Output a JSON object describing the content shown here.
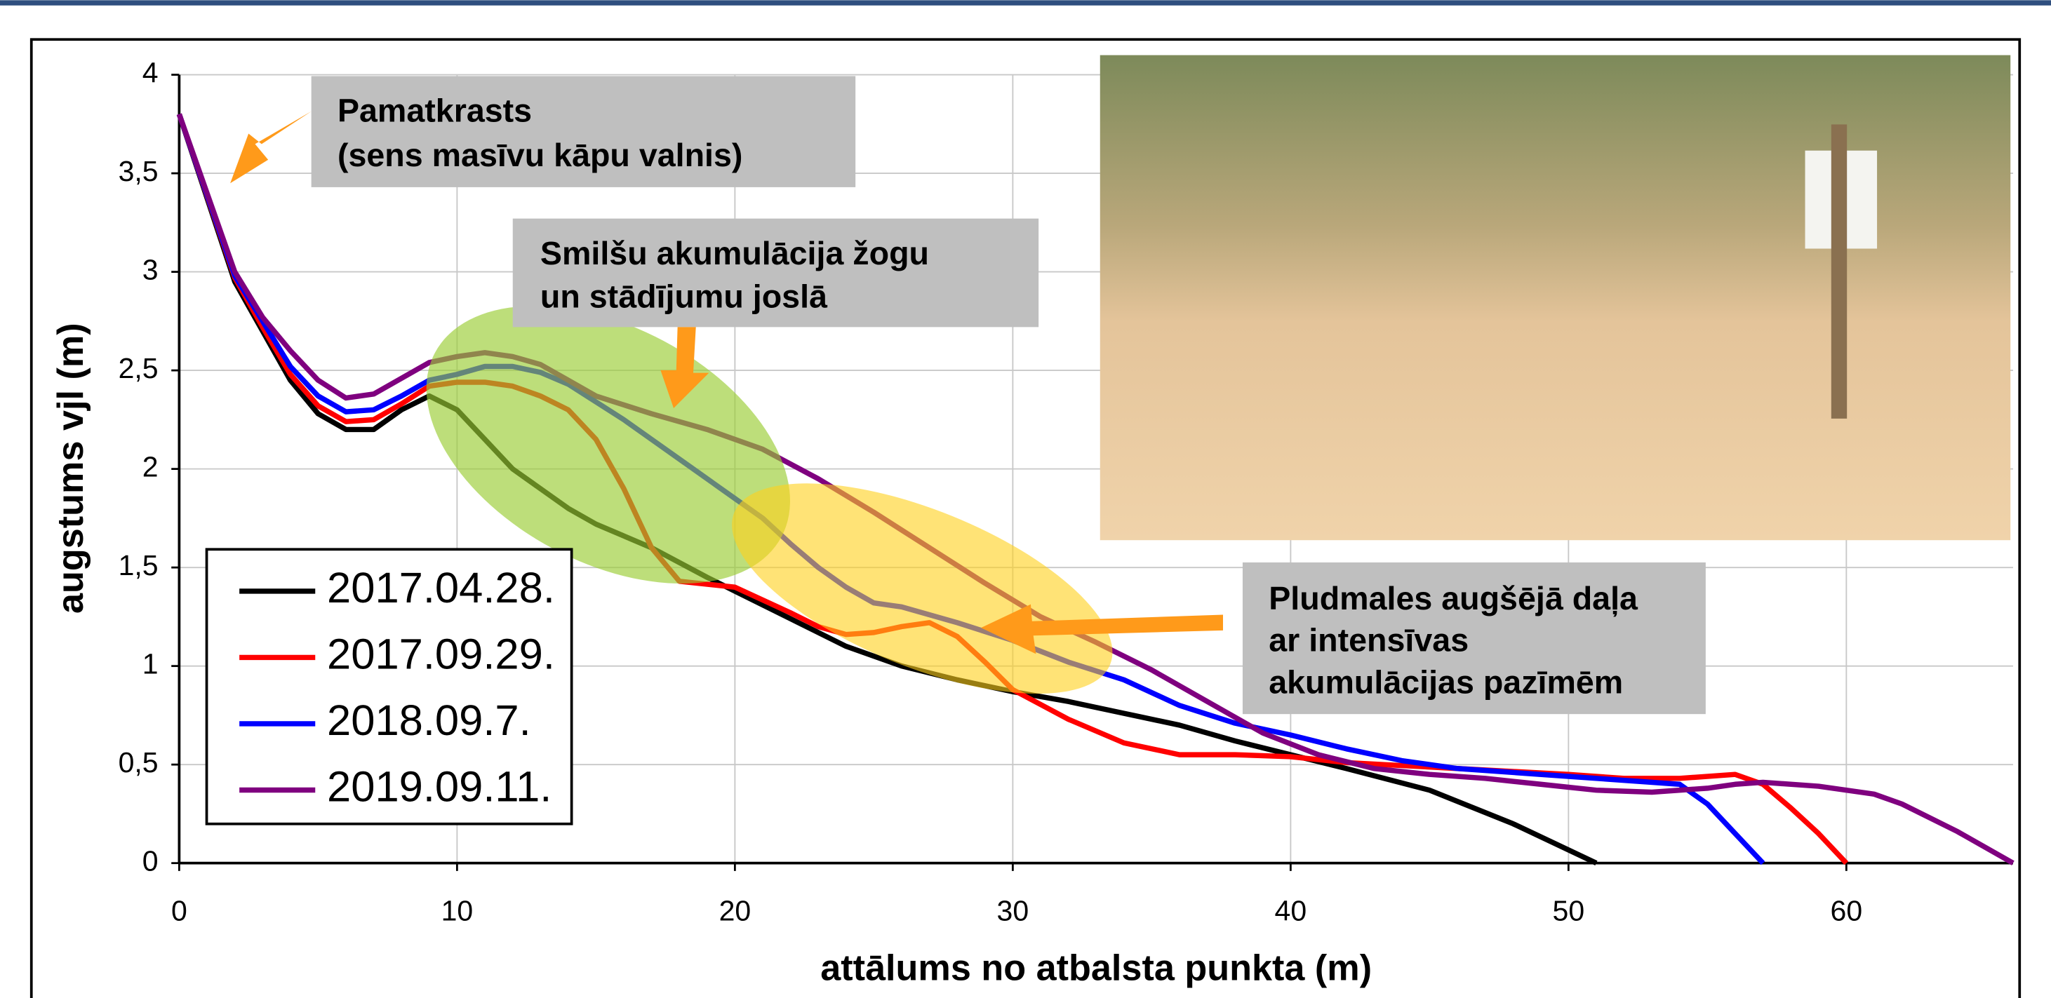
{
  "chart_data": {
    "type": "line",
    "x_label": "attālums no atbalsta punkta (m)",
    "y_label": "augstums vjl (m)",
    "xlim": [
      0,
      66
    ],
    "ylim": [
      0,
      4
    ],
    "xticks": [
      0,
      10,
      20,
      30,
      40,
      50,
      60
    ],
    "yticks": [
      0,
      {
        "value": 0.5,
        "label": "0,5"
      },
      1,
      {
        "value": 1.5,
        "label": "1,5"
      },
      2,
      {
        "value": 2.5,
        "label": "2,5"
      },
      3,
      {
        "value": 3.5,
        "label": "3,5"
      },
      4
    ],
    "grid": true,
    "legend": "lower left",
    "annotations": [
      [
        "Pamatkrasts",
        "(sens masīvu kāpu valnis)"
      ],
      [
        "Smilšu akumulācija žogu",
        "un stādījumu joslā"
      ],
      [
        "Pludmales augšējā daļa",
        "ar intensīvas",
        "akumulācijas pazīmēm"
      ]
    ],
    "series": [
      {
        "name": "2017.04.28.",
        "color": "#000000",
        "x": [
          0,
          2,
          3,
          4,
          5,
          6,
          7,
          8,
          9,
          10,
          11,
          12,
          14,
          15,
          17,
          19,
          20,
          22,
          24,
          26,
          28,
          30,
          32,
          34,
          36,
          38,
          40,
          42,
          45,
          48,
          51
        ],
        "values": [
          3.8,
          2.95,
          2.7,
          2.45,
          2.28,
          2.2,
          2.2,
          2.3,
          2.37,
          2.3,
          2.15,
          2.0,
          1.8,
          1.72,
          1.6,
          1.45,
          1.38,
          1.24,
          1.1,
          1.0,
          0.93,
          0.87,
          0.82,
          0.76,
          0.7,
          0.62,
          0.55,
          0.48,
          0.37,
          0.2,
          0
        ]
      },
      {
        "name": "2017.09.29.",
        "color": "#ff0000",
        "x": [
          0,
          2,
          3,
          4,
          5,
          6,
          7,
          8,
          9,
          10,
          11,
          12,
          13,
          14,
          15,
          16,
          17,
          18,
          20,
          22,
          23,
          24,
          25,
          26,
          27,
          28,
          29,
          30,
          32,
          34,
          36,
          38,
          40,
          42,
          46,
          50,
          52,
          54,
          56,
          57,
          58,
          59,
          60
        ],
        "values": [
          3.8,
          2.97,
          2.72,
          2.48,
          2.32,
          2.24,
          2.25,
          2.33,
          2.42,
          2.44,
          2.44,
          2.42,
          2.37,
          2.3,
          2.15,
          1.9,
          1.6,
          1.43,
          1.4,
          1.27,
          1.2,
          1.16,
          1.17,
          1.2,
          1.22,
          1.15,
          1.02,
          0.88,
          0.73,
          0.61,
          0.55,
          0.55,
          0.54,
          0.51,
          0.48,
          0.45,
          0.43,
          0.43,
          0.45,
          0.4,
          0.28,
          0.15,
          0
        ]
      },
      {
        "name": "2018.09.7.",
        "color": "#0000ff",
        "x": [
          0,
          2,
          3,
          4,
          5,
          6,
          7,
          8,
          9,
          10,
          11,
          12,
          13,
          14,
          16,
          18,
          20,
          21,
          22,
          23,
          24,
          25,
          26,
          28,
          30,
          32,
          34,
          36,
          38,
          40,
          42,
          44,
          46,
          50,
          54,
          55,
          56,
          57
        ],
        "values": [
          3.8,
          2.98,
          2.75,
          2.52,
          2.37,
          2.29,
          2.3,
          2.37,
          2.45,
          2.48,
          2.52,
          2.52,
          2.49,
          2.43,
          2.25,
          2.05,
          1.85,
          1.75,
          1.62,
          1.5,
          1.4,
          1.32,
          1.3,
          1.22,
          1.13,
          1.02,
          0.93,
          0.8,
          0.71,
          0.65,
          0.58,
          0.52,
          0.48,
          0.44,
          0.4,
          0.3,
          0.15,
          0
        ]
      },
      {
        "name": "2019.09.11.",
        "color": "#7f007f",
        "x": [
          0,
          2,
          3,
          4,
          5,
          6,
          7,
          8,
          9,
          10,
          11,
          12,
          13,
          14,
          15,
          17,
          19,
          21,
          23,
          25,
          27,
          29,
          31,
          33,
          35,
          37,
          39,
          41,
          43,
          45,
          47,
          49,
          51,
          53,
          55,
          56,
          57,
          59,
          61,
          62,
          64,
          66
        ],
        "values": [
          3.8,
          3.0,
          2.77,
          2.6,
          2.45,
          2.36,
          2.38,
          2.46,
          2.54,
          2.57,
          2.59,
          2.57,
          2.53,
          2.45,
          2.37,
          2.28,
          2.2,
          2.1,
          1.95,
          1.78,
          1.6,
          1.42,
          1.25,
          1.12,
          0.98,
          0.82,
          0.66,
          0.55,
          0.48,
          0.45,
          0.43,
          0.4,
          0.37,
          0.36,
          0.38,
          0.4,
          0.41,
          0.39,
          0.35,
          0.3,
          0.16,
          0
        ]
      }
    ]
  }
}
